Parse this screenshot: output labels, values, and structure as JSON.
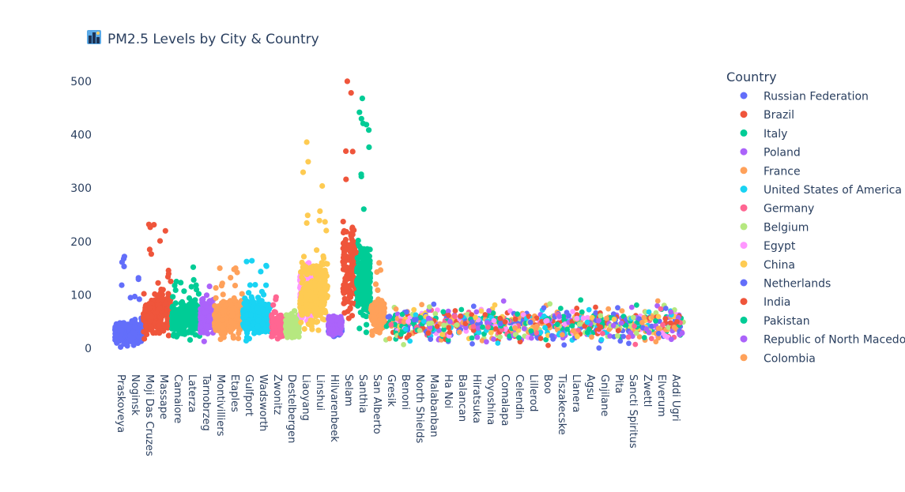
{
  "chart_data": {
    "type": "scatter",
    "title": "PM2.5 Levels by City & Country",
    "title_icon": "city-skyline-icon",
    "xlabel": "",
    "ylabel": "",
    "ylim": [
      -25,
      525
    ],
    "y_ticks": [
      0,
      100,
      200,
      300,
      400,
      500
    ],
    "grid": false,
    "legend": {
      "title": "Country",
      "placement": "right"
    },
    "categories": [
      "Praskoveya",
      "Noginsk",
      "Moji Das Cruzes",
      "Massape",
      "Camaiore",
      "Laterza",
      "Tarnobrzeg",
      "Montivilliers",
      "Etaples",
      "Gulfport",
      "Wadsworth",
      "Zwonitz",
      "Destelbergen",
      "Liaoyang",
      "Linshui",
      "Hilvarenbeek",
      "Selam",
      "Santhia",
      "San Alberto",
      "Gresik",
      "Benoni",
      "North Shields",
      "Malabanban",
      "Ha Noi",
      "Balancan",
      "Hiratsuka",
      "Toyoshina",
      "Comalapa",
      "Celendin",
      "Lillerod",
      "Boo",
      "Tiszakecske",
      "Llanera",
      "Agsu",
      "Gnjilane",
      "Pita",
      "Sancti Spiritus",
      "Zwettl",
      "Elverum",
      "Addi Ugri"
    ],
    "series": [
      {
        "name": "Russian Federation",
        "color": "#636efa",
        "x": [
          0,
          1
        ],
        "mean": [
          28,
          30
        ],
        "spread": [
          22,
          24
        ],
        "max": [
          172,
          132
        ]
      },
      {
        "name": "Brazil",
        "color": "#EF553B",
        "x": [
          2,
          3
        ],
        "mean": [
          60,
          72
        ],
        "spread": [
          40,
          45
        ],
        "max": [
          232,
          220
        ]
      },
      {
        "name": "Italy",
        "color": "#00cc96",
        "x": [
          4,
          5,
          17
        ],
        "mean": [
          55,
          60,
          130
        ],
        "spread": [
          35,
          38,
          70
        ],
        "max": [
          125,
          152,
          468
        ]
      },
      {
        "name": "Poland",
        "color": "#ab63fa",
        "x": [
          6
        ],
        "mean": [
          58
        ],
        "spread": [
          35
        ],
        "max": [
          116
        ]
      },
      {
        "name": "France",
        "color": "#FFA15A",
        "x": [
          7,
          8
        ],
        "mean": [
          58,
          60
        ],
        "spread": [
          40,
          45
        ],
        "max": [
          150,
          150
        ]
      },
      {
        "name": "United States of America",
        "color": "#19d3f3",
        "x": [
          9,
          10
        ],
        "mean": [
          60,
          58
        ],
        "spread": [
          42,
          42
        ],
        "max": [
          164,
          155
        ]
      },
      {
        "name": "Germany",
        "color": "#FF6692",
        "x": [
          11
        ],
        "mean": [
          42
        ],
        "spread": [
          25
        ],
        "max": [
          96
        ]
      },
      {
        "name": "Belgium",
        "color": "#B6E880",
        "x": [
          12
        ],
        "mean": [
          40
        ],
        "spread": [
          22
        ],
        "max": [
          70
        ]
      },
      {
        "name": "Egypt",
        "color": "#FF97FF",
        "x": [
          13
        ],
        "mean": [
          110
        ],
        "spread": [
          60
        ],
        "max": [
          160
        ]
      },
      {
        "name": "China",
        "color": "#FECB52",
        "x": [
          13,
          14
        ],
        "mean": [
          100,
          115
        ],
        "spread": [
          70,
          75
        ],
        "max": [
          386,
          304
        ]
      },
      {
        "name": "Netherlands",
        "color": "#636efa",
        "x": [
          15
        ],
        "mean": [
          40
        ],
        "spread": [
          18
        ],
        "max": [
          60
        ]
      },
      {
        "name": "India",
        "color": "#EF553B",
        "x": [
          16
        ],
        "mean": [
          150
        ],
        "spread": [
          100
        ],
        "max": [
          500
        ]
      },
      {
        "name": "Pakistan",
        "color": "#00cc96",
        "x": [
          17
        ],
        "mean": [
          120
        ],
        "spread": [
          80
        ],
        "max": [
          430
        ]
      },
      {
        "name": "Republic of North Macedonia",
        "color": "#ab63fa",
        "x": [
          15
        ],
        "mean": [
          45
        ],
        "spread": [
          20
        ],
        "max": [
          60
        ]
      },
      {
        "name": "Colombia",
        "color": "#FFA15A",
        "x": [
          18
        ],
        "mean": [
          60
        ],
        "spread": [
          40
        ],
        "max": [
          160
        ]
      }
    ]
  }
}
